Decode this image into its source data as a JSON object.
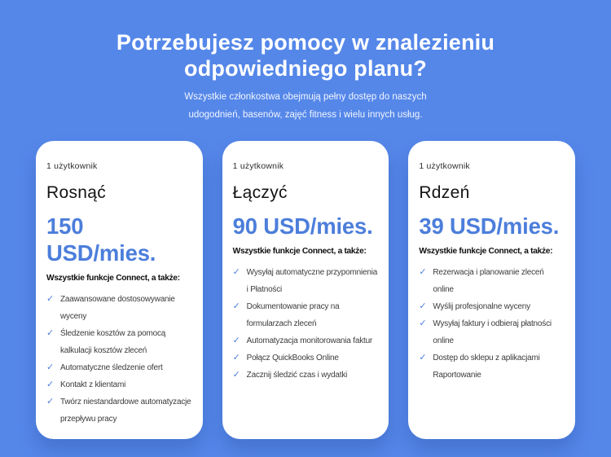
{
  "page": {
    "background_color": "#5587E9",
    "accent_color": "#4C7EDB",
    "card_color": "#FFFFFF",
    "check_icon": "✓"
  },
  "header": {
    "title": "Potrzebujesz pomocy w znalezieniu odpowiedniego planu?",
    "subtitle": "Wszystkie członkostwa obejmują pełny dostęp do naszych udogodnień, basenów, zajęć fitness i wielu innych usług."
  },
  "plans": [
    {
      "users_label": "1 użytkownik",
      "name": "Rosnąć",
      "price": "150 USD/mies.",
      "features_title": "Wszystkie funkcje Connect, a także:",
      "features": [
        "Zaawansowane dostosowywanie wyceny",
        "Śledzenie kosztów za pomocą kalkulacji kosztów zleceń",
        "Automatyczne śledzenie ofert",
        "Kontakt z klientami",
        "Twórz niestandardowe automatyzacje przepływu pracy"
      ]
    },
    {
      "users_label": "1 użytkownik",
      "name": "Łączyć",
      "price": "90 USD/mies.",
      "features_title": "Wszystkie funkcje Connect, a także:",
      "features": [
        "Wysyłaj automatyczne przypomnienia i Płatności",
        "Dokumentowanie pracy na formularzach zleceń",
        "Automatyzacja monitorowania faktur",
        "Połącz QuickBooks Online",
        "Zacznij śledzić czas i wydatki"
      ]
    },
    {
      "users_label": "1 użytkownik",
      "name": "Rdzeń",
      "price": "39 USD/mies.",
      "features_title": "Wszystkie funkcje Connect, a także:",
      "features": [
        "Rezerwacja i planowanie zleceń online",
        "Wyślij profesjonalne wyceny",
        "Wysyłaj faktury i odbieraj płatności online",
        "Dostęp do sklepu z aplikacjami Raportowanie"
      ]
    }
  ]
}
